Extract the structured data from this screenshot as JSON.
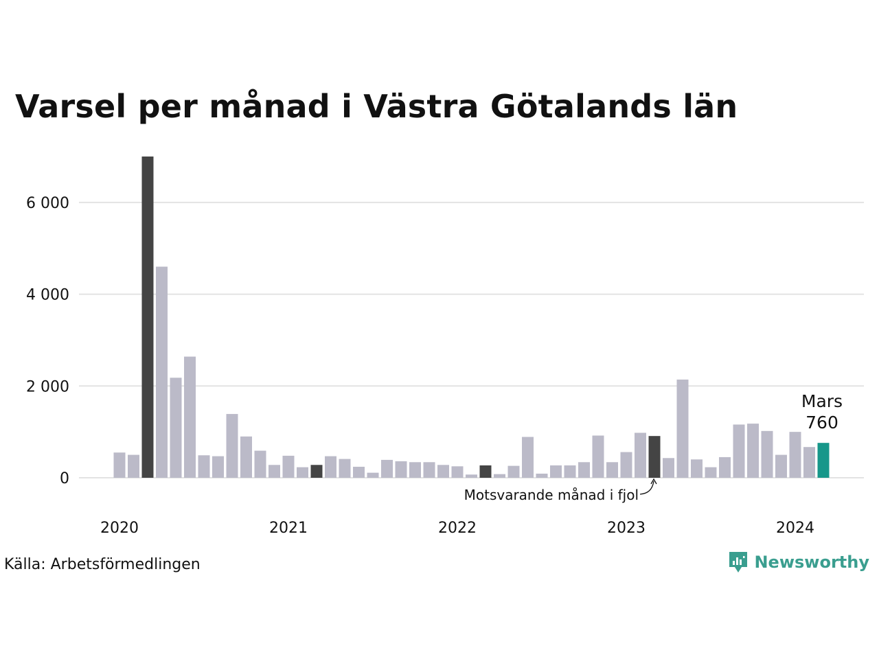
{
  "chart_data": {
    "type": "bar",
    "title": "Varsel per månad i Västra Götalands län",
    "categories": [
      "2020-01",
      "2020-02",
      "2020-03",
      "2020-04",
      "2020-05",
      "2020-06",
      "2020-07",
      "2020-08",
      "2020-09",
      "2020-10",
      "2020-11",
      "2020-12",
      "2021-01",
      "2021-02",
      "2021-03",
      "2021-04",
      "2021-05",
      "2021-06",
      "2021-07",
      "2021-08",
      "2021-09",
      "2021-10",
      "2021-11",
      "2021-12",
      "2022-01",
      "2022-02",
      "2022-03",
      "2022-04",
      "2022-05",
      "2022-06",
      "2022-07",
      "2022-08",
      "2022-09",
      "2022-10",
      "2022-11",
      "2022-12",
      "2023-01",
      "2023-02",
      "2023-03",
      "2023-04",
      "2023-05",
      "2023-06",
      "2023-07",
      "2023-08",
      "2023-09",
      "2023-10",
      "2023-11",
      "2023-12",
      "2024-01",
      "2024-02",
      "2024-03"
    ],
    "values": [
      550,
      500,
      7000,
      4600,
      2180,
      2640,
      490,
      470,
      1390,
      900,
      590,
      280,
      480,
      230,
      280,
      470,
      410,
      240,
      110,
      390,
      360,
      340,
      340,
      280,
      250,
      70,
      270,
      80,
      260,
      890,
      90,
      270,
      270,
      340,
      920,
      340,
      560,
      980,
      910,
      430,
      2140,
      400,
      230,
      450,
      1160,
      1180,
      1020,
      500,
      1000,
      670,
      760
    ],
    "highlight_indices": [
      2,
      14,
      26,
      38
    ],
    "current_index": 50,
    "ylim": [
      0,
      7000
    ],
    "yticks": [
      0,
      2000,
      4000,
      6000
    ],
    "ytick_labels": [
      "0",
      "2 000",
      "4 000",
      "6 000"
    ],
    "xtick_labels": [
      "2020",
      "2021",
      "2022",
      "2023",
      "2024"
    ],
    "xtick_indices": [
      0,
      12,
      24,
      36,
      48
    ],
    "grid": true,
    "colors": {
      "bar": "#bbbac8",
      "highlight": "#444444",
      "current": "#17978a",
      "grid": "#e3e3e3"
    },
    "callout_month": "Mars",
    "callout_value": "760",
    "annotation": "Motsvarande månad i fjol"
  },
  "source": "Källa: Arbetsförmedlingen",
  "brand": {
    "name": "Newsworthy",
    "icon": "newsworthy-logo-icon",
    "color": "#3a9e8f"
  }
}
